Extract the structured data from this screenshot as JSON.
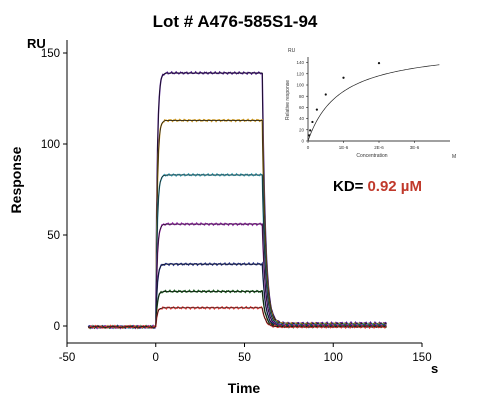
{
  "chart_data": [
    {
      "type": "line",
      "title": "Lot # A476-585S1-94",
      "xlabel": "Time",
      "ylabel": "Response",
      "x_unit": "s",
      "y_unit": "RU",
      "xlim": [
        -50,
        150
      ],
      "ylim": [
        -8,
        150
      ],
      "xticks": [
        "-50",
        "0",
        "50",
        "100",
        "150"
      ],
      "yticks": [
        "0",
        "50",
        "100",
        "150"
      ],
      "legend": "none",
      "grid": false,
      "injection": {
        "start": 0,
        "stop": 60
      },
      "series": [
        {
          "plateau": 139,
          "color": "#4a148c"
        },
        {
          "plateau": 113,
          "color": "#c8941e"
        },
        {
          "plateau": 83,
          "color": "#3aa6b9"
        },
        {
          "plateau": 56,
          "color": "#9c27b0"
        },
        {
          "plateau": 34,
          "color": "#283593"
        },
        {
          "plateau": 19,
          "color": "#1b5e20"
        },
        {
          "plateau": 10,
          "color": "#e53935"
        }
      ],
      "fit_color": "#111111"
    },
    {
      "type": "line",
      "xlabel": "Concentration",
      "ylabel": "Relative response",
      "x_unit": "M",
      "y_unit": "RU",
      "xlim": [
        0,
        4e-06
      ],
      "ylim": [
        0,
        150
      ],
      "xticks": [
        "0",
        "1E-6",
        "2E-6",
        "3E-6"
      ],
      "yticks": [
        "0",
        "20",
        "40",
        "60",
        "80",
        "100",
        "120",
        "140"
      ],
      "points": [
        {
          "x": 3.1e-08,
          "y": 10
        },
        {
          "x": 6.2e-08,
          "y": 19
        },
        {
          "x": 1.25e-07,
          "y": 34
        },
        {
          "x": 2.5e-07,
          "y": 56
        },
        {
          "x": 5e-07,
          "y": 83
        },
        {
          "x": 1e-06,
          "y": 113
        },
        {
          "x": 2e-06,
          "y": 139
        }
      ],
      "fit": {
        "rmax": 170,
        "kd": 9.2e-07
      }
    }
  ],
  "kd": {
    "label": "KD=",
    "value": "0.92 µM"
  }
}
